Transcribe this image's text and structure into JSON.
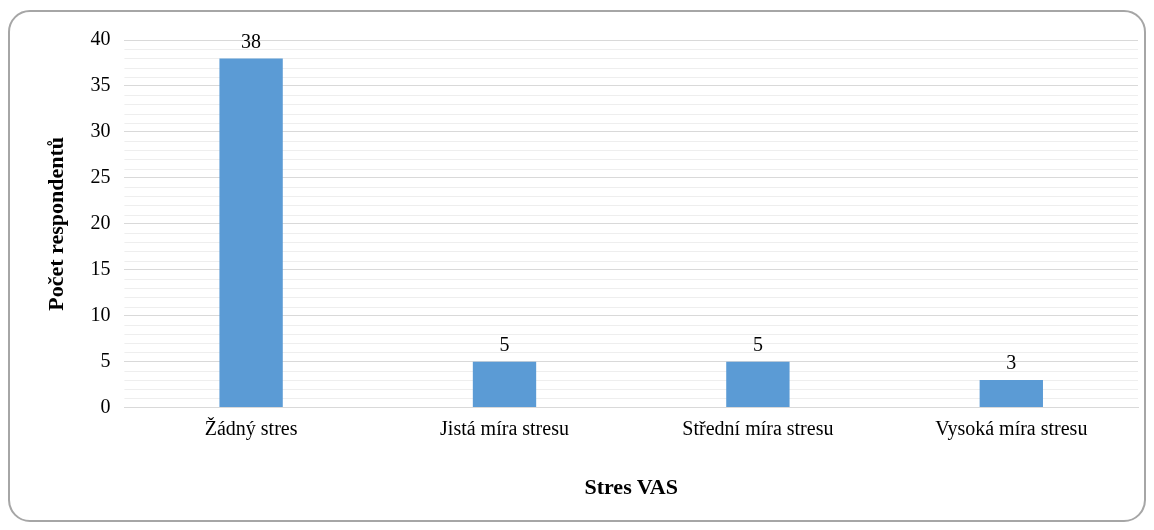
{
  "chart_data": {
    "type": "bar",
    "categories": [
      "Žádný stres",
      "Jistá míra stresu",
      "Střední míra stresu",
      "Vysoká míra stresu"
    ],
    "values": [
      38,
      5,
      5,
      3
    ],
    "color": "#5b9bd5",
    "xlabel": "Stres VAS",
    "ylabel": "Počet respondentů",
    "ylim": [
      0,
      40
    ],
    "yticks": [
      0,
      5,
      10,
      15,
      20,
      25,
      30,
      35,
      40
    ],
    "grid": "y",
    "data_labels": true,
    "legend": false
  }
}
